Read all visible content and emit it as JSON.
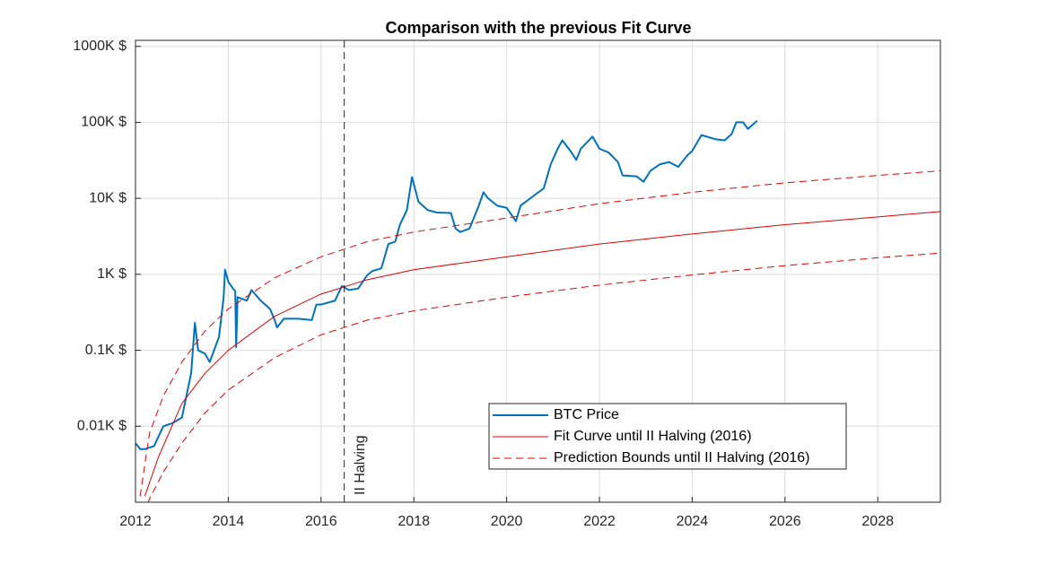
{
  "chart_data": {
    "type": "line",
    "title": "Comparison with the previous Fit Curve",
    "xlim": [
      2012,
      2029.35
    ],
    "xticks": [
      2012,
      2014,
      2016,
      2018,
      2020,
      2022,
      2024,
      2026,
      2028
    ],
    "ylim": [
      1,
      1200000
    ],
    "y_scale": "log",
    "yticks": [
      {
        "value": 10,
        "label": "0.01K $"
      },
      {
        "value": 100,
        "label": "0.1K $"
      },
      {
        "value": 1000,
        "label": "1K $"
      },
      {
        "value": 10000,
        "label": "10K $"
      },
      {
        "value": 100000,
        "label": "100K $"
      },
      {
        "value": 1000000,
        "label": "1000K $"
      }
    ],
    "grid": true,
    "legend": "lower right",
    "annotations": [
      {
        "x": 2016.5,
        "text": "II Halving",
        "color": "#262626"
      }
    ],
    "series": [
      {
        "name": "BTC Price",
        "color": "#0072bd",
        "line_style": "solid",
        "width": 2,
        "x": [
          2012.0,
          2012.1,
          2012.2,
          2012.4,
          2012.6,
          2012.8,
          2013.0,
          2013.2,
          2013.28,
          2013.35,
          2013.5,
          2013.6,
          2013.8,
          2013.9,
          2013.93,
          2014.0,
          2014.1,
          2014.15,
          2014.17,
          2014.2,
          2014.4,
          2014.5,
          2014.7,
          2014.9,
          2015.0,
          2015.05,
          2015.2,
          2015.5,
          2015.8,
          2015.9,
          2016.0,
          2016.3,
          2016.45,
          2016.6,
          2016.8,
          2017.0,
          2017.1,
          2017.3,
          2017.45,
          2017.6,
          2017.7,
          2017.85,
          2017.96,
          2018.1,
          2018.3,
          2018.5,
          2018.8,
          2018.9,
          2019.0,
          2019.2,
          2019.4,
          2019.5,
          2019.6,
          2019.8,
          2020.0,
          2020.2,
          2020.3,
          2020.6,
          2020.8,
          2020.95,
          2021.1,
          2021.2,
          2021.4,
          2021.5,
          2021.6,
          2021.85,
          2022.0,
          2022.2,
          2022.4,
          2022.5,
          2022.8,
          2022.95,
          2023.1,
          2023.3,
          2023.5,
          2023.7,
          2023.9,
          2024.0,
          2024.2,
          2024.5,
          2024.7,
          2024.85,
          2024.95,
          2025.1,
          2025.2,
          2025.4
        ],
        "values": [
          6,
          5,
          5,
          5.5,
          10,
          11,
          13,
          50,
          230,
          100,
          90,
          70,
          150,
          500,
          1150,
          800,
          650,
          600,
          110,
          500,
          450,
          620,
          450,
          350,
          250,
          200,
          260,
          260,
          250,
          400,
          400,
          450,
          700,
          620,
          650,
          980,
          1100,
          1200,
          2500,
          2700,
          4500,
          7000,
          19000,
          9000,
          7000,
          6500,
          6400,
          4000,
          3600,
          4000,
          8000,
          12000,
          10000,
          8000,
          7500,
          5000,
          8000,
          11000,
          13500,
          28000,
          45000,
          58000,
          40000,
          32000,
          45000,
          65000,
          45000,
          40000,
          30000,
          20000,
          19500,
          16500,
          23000,
          28000,
          30000,
          26000,
          37000,
          42000,
          68000,
          60000,
          58000,
          70000,
          100000,
          100000,
          82000,
          105000
        ]
      },
      {
        "name": "Fit Curve until II Halving (2016)",
        "color": "#e00000",
        "line_style": "solid",
        "width": 1,
        "x": [
          2012.2,
          2012.5,
          2013.0,
          2013.5,
          2014.0,
          2015.0,
          2016.0,
          2017.0,
          2018.0,
          2020.0,
          2022.0,
          2024.0,
          2026.0,
          2028.0,
          2029.35
        ],
        "values": [
          1.2,
          4,
          20,
          50,
          100,
          280,
          550,
          850,
          1150,
          1700,
          2500,
          3400,
          4500,
          5700,
          6700
        ]
      },
      {
        "name": "Prediction Bounds until II Halving (2016)",
        "color": "#e00000",
        "line_style": "dashed",
        "width": 1,
        "x": [
          2012.1,
          2012.3,
          2012.6,
          2013.0,
          2013.5,
          2014.0,
          2015.0,
          2016.0,
          2017.0,
          2018.0,
          2020.0,
          2022.0,
          2024.0,
          2026.0,
          2028.0,
          2029.35
        ],
        "upper": [
          1.2,
          8,
          25,
          70,
          180,
          350,
          900,
          1700,
          2700,
          3600,
          5500,
          8500,
          12000,
          16000,
          20000,
          23000
        ],
        "lower": [
          0.5,
          1.1,
          2.5,
          6,
          15,
          30,
          80,
          160,
          250,
          330,
          500,
          720,
          980,
          1300,
          1650,
          1900
        ]
      }
    ]
  }
}
